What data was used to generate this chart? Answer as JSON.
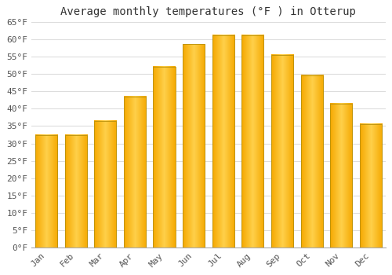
{
  "title": "Average monthly temperatures (°F ) in Otterup",
  "months": [
    "Jan",
    "Feb",
    "Mar",
    "Apr",
    "May",
    "Jun",
    "Jul",
    "Aug",
    "Sep",
    "Oct",
    "Nov",
    "Dec"
  ],
  "values": [
    32.5,
    32.5,
    36.5,
    43.5,
    52,
    58.5,
    61,
    61,
    55.5,
    49.5,
    41.5,
    35.5
  ],
  "bar_color_center": "#FFD04A",
  "bar_color_edge": "#F5A800",
  "bar_edge_color": "#C8A000",
  "background_color": "#FFFFFF",
  "grid_color": "#DDDDDD",
  "ylim": [
    0,
    65
  ],
  "yticks": [
    0,
    5,
    10,
    15,
    20,
    25,
    30,
    35,
    40,
    45,
    50,
    55,
    60,
    65
  ],
  "ytick_labels": [
    "0°F",
    "5°F",
    "10°F",
    "15°F",
    "20°F",
    "25°F",
    "30°F",
    "35°F",
    "40°F",
    "45°F",
    "50°F",
    "55°F",
    "60°F",
    "65°F"
  ],
  "title_fontsize": 10,
  "tick_fontsize": 8,
  "font_family": "monospace",
  "bar_width": 0.75
}
